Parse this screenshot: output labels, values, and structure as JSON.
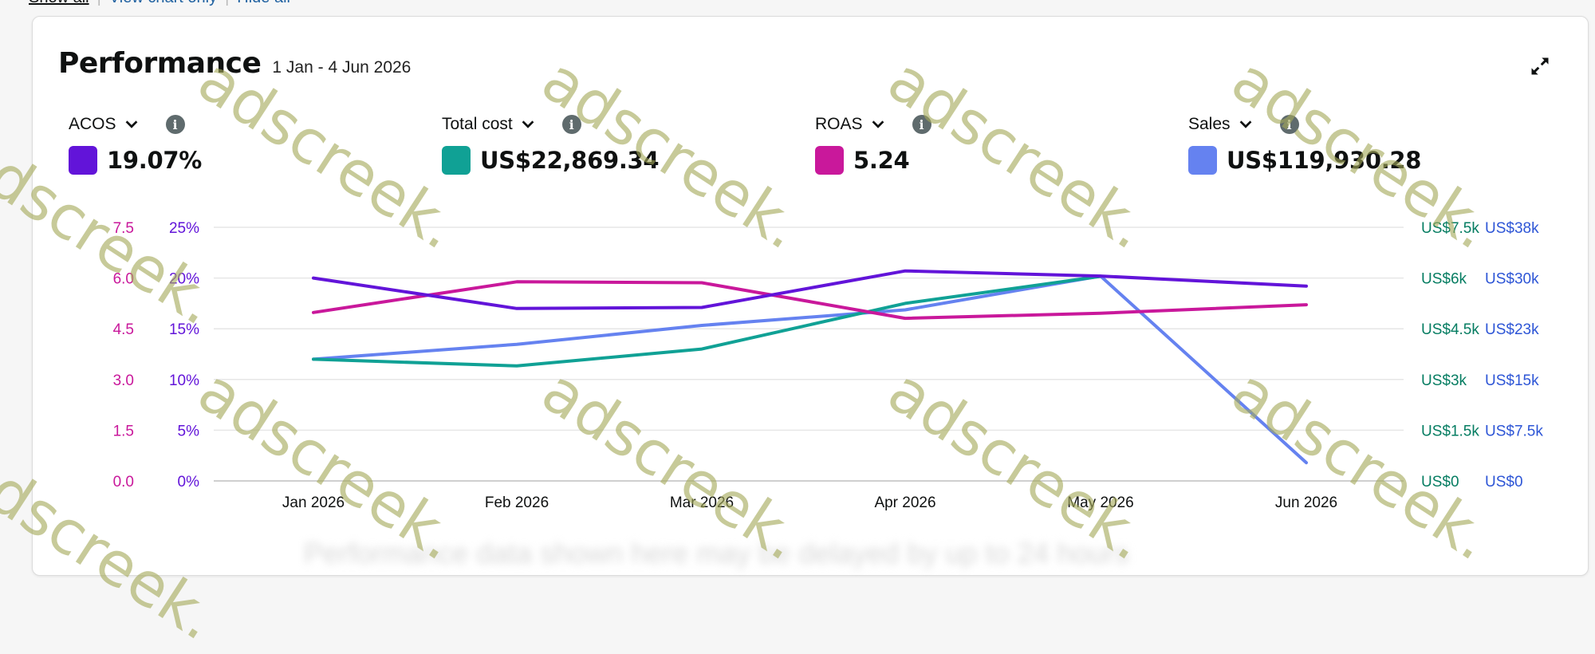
{
  "top_links": {
    "show_all": "Show all",
    "view_chart_only": "View chart only",
    "hide_all": "Hide all"
  },
  "performance": {
    "title": "Performance",
    "date_range": "1 Jan - 4 Jun 2026",
    "metrics": [
      {
        "name": "ACOS",
        "value": "19.07%",
        "color": "#6214d9"
      },
      {
        "name": "Total cost",
        "value": "US$22,869.34",
        "color": "#10a195"
      },
      {
        "name": "ROAS",
        "value": "5.24",
        "color": "#c9189b"
      },
      {
        "name": "Sales",
        "value": "US$119,930.28",
        "color": "#6582f0"
      }
    ],
    "footer_blurred": "Performance data shown here may be delayed by up to 24 hours"
  },
  "chart_data": {
    "type": "line",
    "categories": [
      "Jan 2026",
      "Feb 2026",
      "Mar 2026",
      "Apr 2026",
      "May 2026",
      "Jun 2026"
    ],
    "axes": {
      "roas": {
        "ticks": [
          "7.5",
          "6.0",
          "4.5",
          "3.0",
          "1.5",
          "0.0"
        ],
        "color": "#c9189b",
        "range": [
          0,
          7.5
        ]
      },
      "acos": {
        "ticks": [
          "25%",
          "20%",
          "15%",
          "10%",
          "5%",
          "0%"
        ],
        "color": "#6214d9",
        "range": [
          0,
          25
        ]
      },
      "cost": {
        "ticks": [
          "US$7.5k",
          "US$6k",
          "US$4.5k",
          "US$3k",
          "US$1.5k",
          "US$0"
        ],
        "color": "#067d62",
        "range": [
          0,
          7500
        ]
      },
      "sales": {
        "ticks": [
          "US$38k",
          "US$30k",
          "US$23k",
          "US$15k",
          "US$7.5k",
          "US$0"
        ],
        "color": "#2e56d6",
        "range": [
          0,
          37500
        ]
      }
    },
    "series": [
      {
        "name": "ACOS",
        "axis": "acos",
        "color": "#6214d9",
        "values": [
          20.0,
          17.0,
          17.1,
          20.7,
          20.2,
          19.2
        ]
      },
      {
        "name": "Total cost",
        "axis": "cost",
        "color": "#10a195",
        "values": [
          3600,
          3400,
          3900,
          5250,
          6050,
          null
        ]
      },
      {
        "name": "ROAS",
        "axis": "roas",
        "color": "#c9189b",
        "values": [
          4.98,
          5.89,
          5.86,
          4.81,
          4.96,
          5.21
        ]
      },
      {
        "name": "Sales",
        "axis": "sales",
        "color": "#6582f0",
        "values": [
          18000,
          20200,
          23000,
          25300,
          30300,
          2700
        ]
      }
    ],
    "grid": true
  },
  "watermark": "adscreek."
}
